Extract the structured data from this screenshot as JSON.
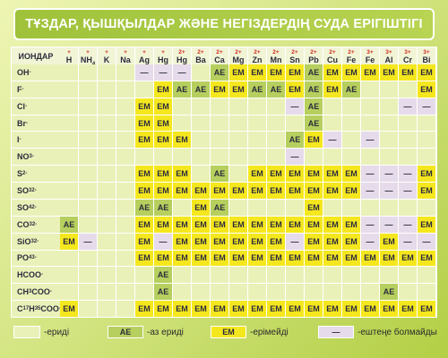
{
  "title": "ТҰЗДАР, ҚЫШҚЫЛДАР ЖӘНЕ НЕГІЗДЕРДІҢ СУДА ЕРІГІШТІГІ",
  "table": {
    "corner": "ИОНДАР",
    "cations": [
      {
        "charge": "+",
        "parts": [
          {
            "text": "H"
          }
        ]
      },
      {
        "charge": "+",
        "parts": [
          {
            "text": "NH"
          },
          {
            "sub": "4"
          }
        ]
      },
      {
        "charge": "+",
        "parts": [
          {
            "text": "K"
          }
        ]
      },
      {
        "charge": "+",
        "parts": [
          {
            "text": "Na"
          }
        ]
      },
      {
        "charge": "+",
        "parts": [
          {
            "text": "Ag"
          }
        ]
      },
      {
        "charge": "+",
        "parts": [
          {
            "text": "Hg"
          }
        ]
      },
      {
        "charge": "2+",
        "parts": [
          {
            "text": "Hg"
          }
        ]
      },
      {
        "charge": "2+",
        "parts": [
          {
            "text": "Ba"
          }
        ]
      },
      {
        "charge": "2+",
        "parts": [
          {
            "text": "Ca"
          }
        ]
      },
      {
        "charge": "2+",
        "parts": [
          {
            "text": "Mg"
          }
        ]
      },
      {
        "charge": "2+",
        "parts": [
          {
            "text": "Zn"
          }
        ]
      },
      {
        "charge": "2+",
        "parts": [
          {
            "text": "Mn"
          }
        ]
      },
      {
        "charge": "2+",
        "parts": [
          {
            "text": "Sn"
          }
        ]
      },
      {
        "charge": "2+",
        "parts": [
          {
            "text": "Pb"
          }
        ]
      },
      {
        "charge": "2+",
        "parts": [
          {
            "text": "Cu"
          }
        ]
      },
      {
        "charge": "2+",
        "parts": [
          {
            "text": "Fe"
          }
        ]
      },
      {
        "charge": "3+",
        "parts": [
          {
            "text": "Fe"
          }
        ]
      },
      {
        "charge": "3+",
        "parts": [
          {
            "text": "Al"
          }
        ]
      },
      {
        "charge": "3+",
        "parts": [
          {
            "text": "Cr"
          }
        ]
      },
      {
        "charge": "3+",
        "parts": [
          {
            "text": "Bi"
          }
        ]
      }
    ],
    "rows": [
      {
        "ion": [
          {
            "text": "OH"
          },
          {
            "sup": "-"
          }
        ],
        "cells": [
          null,
          null,
          null,
          null,
          "—",
          "—",
          "—",
          null,
          "AE",
          "EM",
          "EM",
          "EM",
          "EM",
          "AE",
          "EM",
          "EM",
          "EM",
          "EM",
          "EM",
          "EM"
        ]
      },
      {
        "ion": [
          {
            "text": "F"
          },
          {
            "sup": "-"
          }
        ],
        "cells": [
          null,
          null,
          null,
          null,
          null,
          "EM",
          "AE",
          "AE",
          "EM",
          "EM",
          "AE",
          "AE",
          "EM",
          "AE",
          "EM",
          "AE",
          null,
          null,
          null,
          "EM"
        ]
      },
      {
        "ion": [
          {
            "text": "Cl"
          },
          {
            "sup": "-"
          }
        ],
        "cells": [
          null,
          null,
          null,
          null,
          "EM",
          "EM",
          null,
          null,
          null,
          null,
          null,
          null,
          "—",
          "AE",
          null,
          null,
          null,
          null,
          "—",
          "—"
        ]
      },
      {
        "ion": [
          {
            "text": "Br"
          },
          {
            "sup": "-"
          }
        ],
        "cells": [
          null,
          null,
          null,
          null,
          "EM",
          "EM",
          null,
          null,
          null,
          null,
          null,
          null,
          null,
          "AE",
          null,
          null,
          null,
          null,
          null,
          null
        ]
      },
      {
        "ion": [
          {
            "text": "I"
          },
          {
            "sup": "-"
          }
        ],
        "cells": [
          null,
          null,
          null,
          null,
          "EM",
          "EM",
          "EM",
          null,
          null,
          null,
          null,
          null,
          "AE",
          "EM",
          "—",
          null,
          "—",
          null,
          null,
          null
        ]
      },
      {
        "ion": [
          {
            "text": "NO"
          },
          {
            "sub": "3"
          },
          {
            "sup": "-"
          }
        ],
        "cells": [
          null,
          null,
          null,
          null,
          null,
          null,
          null,
          null,
          null,
          null,
          null,
          null,
          "—",
          null,
          null,
          null,
          null,
          null,
          null,
          null
        ]
      },
      {
        "ion": [
          {
            "text": "S"
          },
          {
            "sup": "2-"
          }
        ],
        "cells": [
          null,
          null,
          null,
          null,
          "EM",
          "EM",
          "EM",
          null,
          "AE",
          null,
          "EM",
          "EM",
          "EM",
          "EM",
          "EM",
          "EM",
          "—",
          "—",
          "—",
          "EM"
        ]
      },
      {
        "ion": [
          {
            "text": "SO"
          },
          {
            "sub": "3"
          },
          {
            "sup": "2-"
          }
        ],
        "cells": [
          null,
          null,
          null,
          null,
          "EM",
          "EM",
          "EM",
          "EM",
          "EM",
          "EM",
          "EM",
          "EM",
          "EM",
          "EM",
          "EM",
          "EM",
          "—",
          "—",
          "—",
          "EM"
        ]
      },
      {
        "ion": [
          {
            "text": "SO"
          },
          {
            "sub": "4"
          },
          {
            "sup": "2-"
          }
        ],
        "cells": [
          null,
          null,
          null,
          null,
          "AE",
          "AE",
          null,
          "EM",
          "AE",
          null,
          null,
          null,
          null,
          "EM",
          null,
          null,
          null,
          null,
          null,
          null
        ]
      },
      {
        "ion": [
          {
            "text": "CO"
          },
          {
            "sub": "3"
          },
          {
            "sup": "2-"
          }
        ],
        "cells": [
          "AE",
          null,
          null,
          null,
          "EM",
          "EM",
          "EM",
          "EM",
          "EM",
          "EM",
          "EM",
          "EM",
          "EM",
          "EM",
          "EM",
          "EM",
          "—",
          "—",
          "—",
          "EM"
        ]
      },
      {
        "ion": [
          {
            "text": "SiO"
          },
          {
            "sub": "3"
          },
          {
            "sup": "2-"
          }
        ],
        "cells": [
          "EM",
          "—",
          null,
          null,
          "EM",
          "—",
          "EM",
          "EM",
          "EM",
          "EM",
          "EM",
          "EM",
          "—",
          "EM",
          "EM",
          "EM",
          "—",
          "EM",
          "—",
          "—"
        ]
      },
      {
        "ion": [
          {
            "text": "PO"
          },
          {
            "sub": "4"
          },
          {
            "sup": "3-"
          }
        ],
        "cells": [
          null,
          null,
          null,
          null,
          "EM",
          "EM",
          "EM",
          "EM",
          "EM",
          "EM",
          "EM",
          "EM",
          "EM",
          "EM",
          "EM",
          "EM",
          "EM",
          "EM",
          "EM",
          "EM"
        ]
      },
      {
        "ion": [
          {
            "text": "HCOO"
          },
          {
            "sup": "-"
          }
        ],
        "cells": [
          null,
          null,
          null,
          null,
          null,
          "AE",
          null,
          null,
          null,
          null,
          null,
          null,
          null,
          null,
          null,
          null,
          null,
          null,
          null,
          null
        ]
      },
      {
        "ion": [
          {
            "text": "CH"
          },
          {
            "sub": "3"
          },
          {
            "text": "COO"
          },
          {
            "sup": "-"
          }
        ],
        "cells": [
          null,
          null,
          null,
          null,
          null,
          "AE",
          null,
          null,
          null,
          null,
          null,
          null,
          null,
          null,
          null,
          null,
          null,
          "AE",
          null,
          null
        ]
      },
      {
        "ion": [
          {
            "text": "C"
          },
          {
            "sub": "17"
          },
          {
            "text": "H"
          },
          {
            "sub": "35"
          },
          {
            "text": "COO"
          },
          {
            "sup": "-"
          }
        ],
        "cells": [
          "EM",
          null,
          null,
          null,
          "EM",
          "EM",
          "EM",
          "EM",
          "EM",
          "EM",
          "EM",
          "EM",
          "EM",
          "EM",
          "EM",
          "EM",
          "EM",
          "EM",
          "EM",
          "EM"
        ]
      }
    ]
  },
  "legend": [
    {
      "sample": null,
      "label": "-ериді",
      "color": "#e9f1b8"
    },
    {
      "sample": "AE",
      "label": "-аз ериді",
      "color": "#b6cf5e"
    },
    {
      "sample": "EM",
      "label": "-ерімейді",
      "color": "#f5e71e"
    },
    {
      "sample": "—",
      "label": "-ештеңе болмайды",
      "color": "#e6dbea"
    }
  ]
}
